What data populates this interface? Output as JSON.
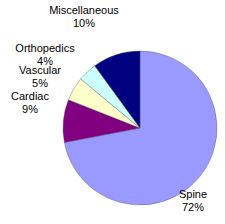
{
  "chart_data": {
    "type": "pie",
    "categories": [
      "Spine",
      "Cardiac",
      "Vascular",
      "Orthopedics",
      "Miscellaneous"
    ],
    "values": [
      72,
      9,
      5,
      4,
      10
    ],
    "value_labels": [
      "72%",
      "9%",
      "5%",
      "4%",
      "10%"
    ],
    "colors": [
      "#9999ff",
      "#800080",
      "#ffffcc",
      "#ccffff",
      "#000080"
    ],
    "data_labels": true
  }
}
